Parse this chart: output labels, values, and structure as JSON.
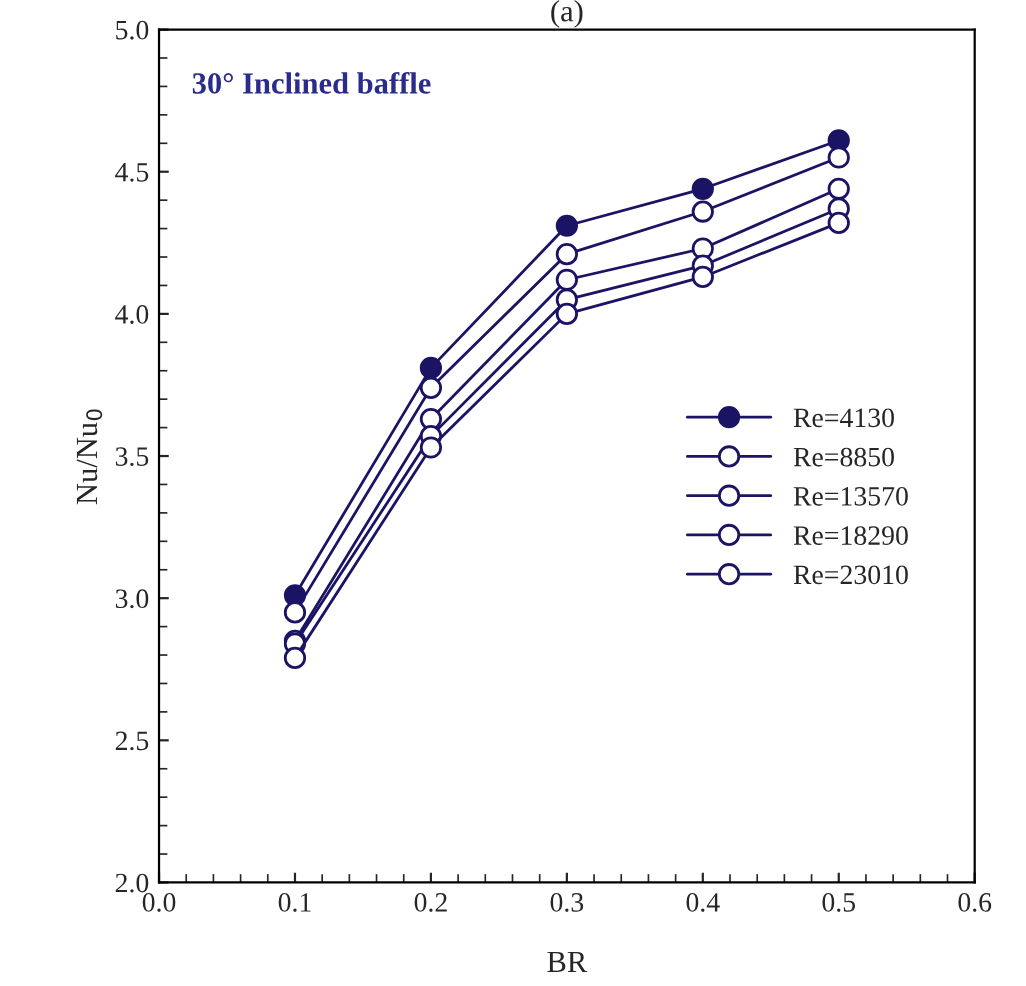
{
  "chart_data": {
    "type": "line",
    "title": "(a)",
    "xlabel": "BR",
    "ylabel": "Nu/Nu$_{0}$",
    "x": [
      0.1,
      0.2,
      0.3,
      0.4,
      0.5
    ],
    "series": [
      {
        "name": "Re=4130",
        "color": "#1b1464",
        "values": [
          3.01,
          3.81,
          4.31,
          4.44,
          4.61
        ]
      },
      {
        "name": "Re=8850",
        "color": "#1b1464",
        "values": [
          2.95,
          3.74,
          4.21,
          4.36,
          4.55
        ]
      },
      {
        "name": "Re=13570",
        "color": "#1b1464",
        "values": [
          2.85,
          3.63,
          4.12,
          4.23,
          4.44
        ]
      },
      {
        "name": "Re=18290",
        "color": "#1b1464",
        "values": [
          2.84,
          3.57,
          4.05,
          4.17,
          4.37
        ]
      },
      {
        "name": "Re=23010",
        "color": "#1b1464",
        "values": [
          2.79,
          3.53,
          4.0,
          4.13,
          4.32
        ]
      }
    ],
    "xlim": [
      0.0,
      0.6
    ],
    "xticks": [
      {
        "value": 0.0,
        "label": "0.0"
      },
      0.1,
      0.2,
      0.3,
      0.4,
      0.5,
      0.6
    ],
    "ylim": [
      2.0,
      5.0
    ],
    "yticks": [
      {
        "value": 2.0,
        "label": "2.0"
      },
      2.5,
      {
        "value": 3.0,
        "label": "3.0"
      },
      3.5,
      {
        "value": 4.0,
        "label": "4.0"
      },
      4.5,
      {
        "value": 5.0,
        "label": "5.0"
      }
    ],
    "annotations": [
      "30° Inclined baffle"
    ],
    "marker": "circle",
    "line_style": "solid",
    "grid": false,
    "legend": "right"
  }
}
